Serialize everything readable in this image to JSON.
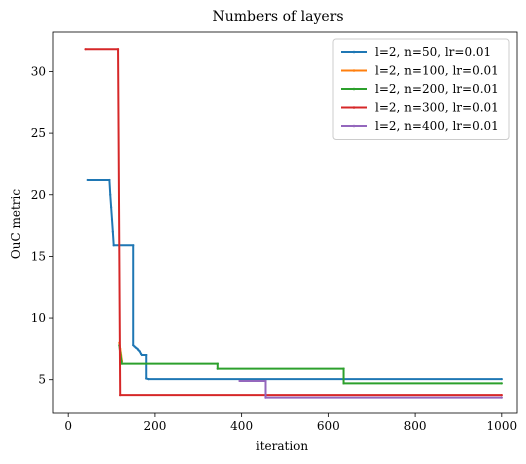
{
  "chart_data": {
    "type": "line",
    "title": "Numbers of layers",
    "xlabel": "iteration",
    "ylabel": "OuC metric",
    "xlim": [
      -35,
      1035
    ],
    "ylim": [
      2.3,
      33.2
    ],
    "xticks": [
      0,
      200,
      400,
      600,
      800,
      1000
    ],
    "yticks": [
      5,
      10,
      15,
      20,
      25,
      30
    ],
    "grid": false,
    "legend_position": "top-right",
    "series": [
      {
        "name": "l=2, n=50, lr=0.01",
        "color": "#1f77b4",
        "x": [
          45,
          95,
          97,
          99,
          101,
          103,
          105,
          150,
          150,
          153,
          156,
          160,
          162,
          165,
          168,
          170,
          180,
          180,
          185,
          1000
        ],
        "y": [
          21.2,
          21.2,
          20.0,
          19.0,
          18.0,
          17.0,
          15.9,
          15.9,
          7.8,
          7.7,
          7.6,
          7.5,
          7.4,
          7.3,
          7.1,
          7.0,
          7.0,
          5.1,
          5.05,
          5.05
        ]
      },
      {
        "name": "l=2, n=100, lr=0.01",
        "color": "#ff7f0e",
        "x": [
          118,
          120,
          122,
          124
        ],
        "y": [
          8.0,
          7.5,
          7.0,
          6.5
        ]
      },
      {
        "name": "l=2, n=200, lr=0.01",
        "color": "#2ca02c",
        "x": [
          118,
          120,
          122,
          124,
          345,
          345,
          635,
          635,
          1000
        ],
        "y": [
          7.8,
          7.2,
          6.7,
          6.3,
          6.3,
          5.9,
          5.9,
          4.7,
          4.7
        ]
      },
      {
        "name": "l=2, n=300, lr=0.01",
        "color": "#d62728",
        "x": [
          40,
          115,
          120,
          1000
        ],
        "y": [
          31.8,
          31.8,
          3.75,
          3.75
        ]
      },
      {
        "name": "l=2, n=400, lr=0.01",
        "color": "#9467bd",
        "x": [
          395,
          455,
          455,
          1000
        ],
        "y": [
          4.9,
          4.9,
          3.55,
          3.55
        ]
      }
    ]
  }
}
